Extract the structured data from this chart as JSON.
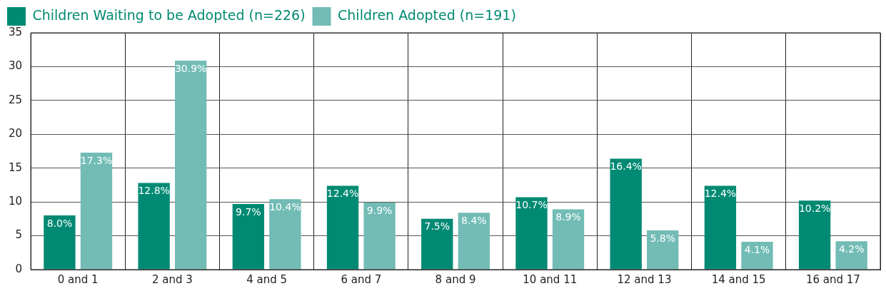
{
  "chart_data": {
    "type": "bar",
    "categories": [
      "0 and 1",
      "2 and 3",
      "4 and 5",
      "6 and 7",
      "8 and 9",
      "10 and 11",
      "12 and 13",
      "14 and 15",
      "16 and 17"
    ],
    "series": [
      {
        "name": "Children Waiting to be Adopted (n=226)",
        "color": "#008a73",
        "values": [
          8.0,
          12.8,
          9.7,
          12.4,
          7.5,
          10.7,
          16.4,
          12.4,
          10.2
        ]
      },
      {
        "name": "Children Adopted (n=191)",
        "color": "#72bcb5",
        "values": [
          17.3,
          30.9,
          10.4,
          9.9,
          8.4,
          8.9,
          5.8,
          4.1,
          4.2
        ]
      }
    ],
    "value_labels": [
      [
        "8.0%",
        "12.8%",
        "9.7%",
        "12.4%",
        "7.5%",
        "10.7%",
        "16.4%",
        "12.4%",
        "10.2%"
      ],
      [
        "17.3%",
        "30.9%",
        "10.4%",
        "9.9%",
        "8.4%",
        "8.9%",
        "5.8%",
        "4.1%",
        "4.2%"
      ]
    ],
    "ylim": [
      0,
      35
    ],
    "yticks": [
      0,
      5,
      10,
      15,
      20,
      25,
      30,
      35
    ],
    "grid": true,
    "legend": "top left"
  }
}
